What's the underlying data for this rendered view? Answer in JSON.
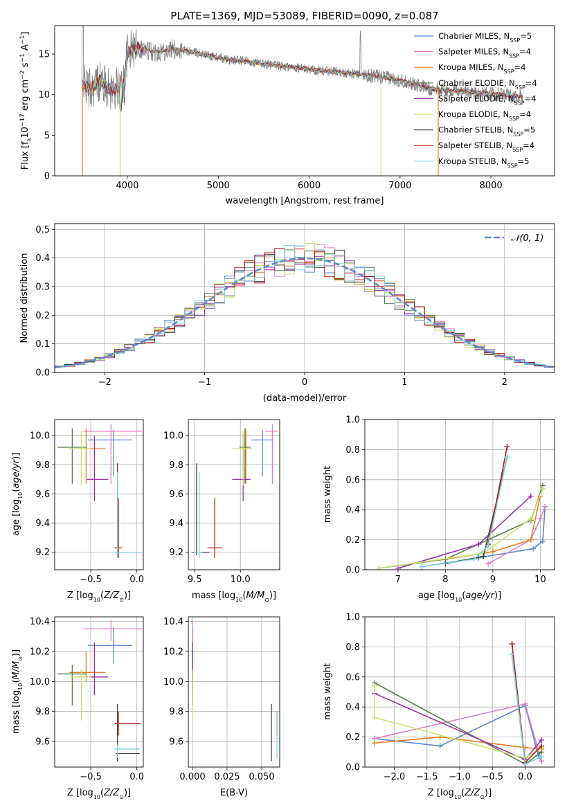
{
  "colors": {
    "gray": "#808080",
    "blue": "#5b86d4",
    "pink": "#e07fc4",
    "orange": "#e87e20",
    "green": "#5a7a4e",
    "purple": "#9b2fae",
    "yellowgreen": "#c9e36a",
    "black": "#444444",
    "red": "#b81d13",
    "cyan": "#7ed6de"
  },
  "legend": [
    {
      "text": "Chabrier MILES, N",
      "sub": "SSP",
      "tail": "=5",
      "color": "#5b86d4"
    },
    {
      "text": "Salpeter MILES, N",
      "sub": "SSP",
      "tail": "=4",
      "color": "#e07fc4"
    },
    {
      "text": "Kroupa MILES, N",
      "sub": "SSP",
      "tail": "=4",
      "color": "#e87e20"
    },
    {
      "text": "Chabrier ELODIE, N",
      "sub": "SSP",
      "tail": "=4",
      "color": "#5a7a4e"
    },
    {
      "text": "Salpeter ELODIE, N",
      "sub": "SSP",
      "tail": "=4",
      "color": "#9b2fae"
    },
    {
      "text": "Kroupa ELODIE, N",
      "sub": "SSP",
      "tail": "=4",
      "color": "#c9e36a"
    },
    {
      "text": "Chabrier STELIB, N",
      "sub": "SSP",
      "tail": "=5",
      "color": "#444444"
    },
    {
      "text": "Salpeter STELIB, N",
      "sub": "SSP",
      "tail": "=4",
      "color": "#b81d13"
    },
    {
      "text": "Kroupa STELIB, N",
      "sub": "SSP",
      "tail": "=5",
      "color": "#7ed6de"
    }
  ],
  "chart_data": [
    {
      "type": "line",
      "title": "PLATE=1369, MJD=53089, FIBERID=0090, z=0.087",
      "xlabel": "wavelength [Angstrom, rest frame]",
      "ylabel": "Flux [fλ10⁻¹⁷ erg cm⁻² s⁻¹ A⁻¹]",
      "xlim": [
        3200,
        8700
      ],
      "ylim": [
        0,
        18.5
      ],
      "xticks": [
        4000,
        5000,
        6000,
        7000,
        8000
      ],
      "yticks": [
        0,
        5,
        10,
        15
      ],
      "series_names": [
        "Chabrier MILES",
        "Salpeter MILES",
        "Kroupa MILES",
        "Chabrier ELODIE",
        "Salpeter ELODIE",
        "Kroupa ELODIE",
        "Chabrier STELIB",
        "Salpeter STELIB",
        "Kroupa STELIB"
      ],
      "continuum": [
        [
          3500,
          11.2
        ],
        [
          3600,
          10.8
        ],
        [
          3700,
          11.8
        ],
        [
          3800,
          10.6
        ],
        [
          3950,
          11.0
        ],
        [
          4000,
          15.2
        ],
        [
          4100,
          15.8
        ],
        [
          4300,
          15.3
        ],
        [
          4500,
          15.6
        ],
        [
          4700,
          15.3
        ],
        [
          4900,
          14.8
        ],
        [
          5100,
          14.3
        ],
        [
          5300,
          14.1
        ],
        [
          5500,
          13.8
        ],
        [
          5700,
          13.5
        ],
        [
          5900,
          13.3
        ],
        [
          6100,
          13.0
        ],
        [
          6300,
          12.8
        ],
        [
          6500,
          12.6
        ],
        [
          6700,
          12.3
        ],
        [
          6900,
          12.0
        ],
        [
          7100,
          11.5
        ],
        [
          7300,
          10.8
        ],
        [
          7500,
          10.5
        ],
        [
          7700,
          10.4
        ],
        [
          7900,
          10.2
        ],
        [
          8100,
          10.0
        ],
        [
          8300,
          9.8
        ]
      ]
    },
    {
      "type": "histogram",
      "xlabel": "(data-model)/error",
      "ylabel": "Normed distribution",
      "xlim": [
        -2.5,
        2.5
      ],
      "ylim": [
        0,
        0.52
      ],
      "xticks": [
        -2,
        -1,
        0,
        1,
        2
      ],
      "yticks": [
        0.0,
        0.1,
        0.2,
        0.3,
        0.4,
        0.5
      ],
      "legend": "𝒩(0, 1)",
      "gaussian": {
        "mu": 0,
        "sigma": 1
      }
    },
    {
      "type": "scatter",
      "xlabel": "Z [log10(Z/Z⊙)]",
      "ylabel": "age  [log10(age/yr)]",
      "xlim": [
        -0.89,
        0.07
      ],
      "ylim": [
        9.08,
        10.11
      ],
      "xticks": [
        -0.5,
        0.0
      ],
      "yticks": [
        9.2,
        9.4,
        9.6,
        9.8,
        10.0
      ],
      "points": [
        {
          "x": -0.25,
          "y": 9.97,
          "xerr": [
            0.28,
            0.2
          ],
          "yerr": [
            0.25,
            0.07
          ],
          "color": "#5b86d4"
        },
        {
          "x": -0.28,
          "y": 10.03,
          "xerr": [
            0.3,
            0.34
          ],
          "yerr": [
            0.36,
            0.05
          ],
          "color": "#e07fc4"
        },
        {
          "x": -0.55,
          "y": 9.91,
          "xerr": [
            0.18,
            0.21
          ],
          "yerr": [
            0.24,
            0.14
          ],
          "color": "#e87e20"
        },
        {
          "x": -0.7,
          "y": 9.92,
          "xerr": [
            0.16,
            0.16
          ],
          "yerr": [
            0.25,
            0.13
          ],
          "color": "#5a7a4e"
        },
        {
          "x": -0.46,
          "y": 9.7,
          "xerr": [
            0.08,
            0.15
          ],
          "yerr": [
            0.15,
            0.3
          ],
          "color": "#9b2fae"
        },
        {
          "x": -0.6,
          "y": 9.91,
          "xerr": [
            0.12,
            0.1
          ],
          "yerr": [
            0.25,
            0.12
          ],
          "color": "#c9e36a"
        },
        {
          "x": -0.21,
          "y": 9.2,
          "xerr": [
            0.02,
            0.02
          ],
          "yerr": [
            0.02,
            0.61
          ],
          "color": "#444444"
        },
        {
          "x": -0.2,
          "y": 9.23,
          "xerr": [
            0.04,
            0.04
          ],
          "yerr": [
            0.07,
            0.34
          ],
          "color": "#b81d13"
        },
        {
          "x": -0.21,
          "y": 9.2,
          "xerr": [
            0.03,
            0.24
          ],
          "yerr": [
            0.04,
            0.55
          ],
          "color": "#7ed6de"
        }
      ]
    },
    {
      "type": "scatter",
      "xlabel": "mass [log10(M/M⊙)]",
      "ylabel": "",
      "xlim": [
        9.43,
        10.43
      ],
      "ylim": [
        9.08,
        10.11
      ],
      "xticks": [
        9.5,
        10.0
      ],
      "yticks": [
        9.2,
        9.4,
        9.6,
        9.8,
        10.0
      ],
      "points": [
        {
          "x": 10.24,
          "y": 9.97,
          "xerr": [
            0.12,
            0.12
          ],
          "yerr": [
            0.25,
            0.07
          ],
          "color": "#5b86d4"
        },
        {
          "x": 10.35,
          "y": 10.03,
          "xerr": [
            0.08,
            0.06
          ],
          "yerr": [
            0.36,
            0.05
          ],
          "color": "#e07fc4"
        },
        {
          "x": 10.06,
          "y": 9.91,
          "xerr": [
            0.06,
            0.06
          ],
          "yerr": [
            0.24,
            0.14
          ],
          "color": "#e87e20"
        },
        {
          "x": 10.05,
          "y": 9.92,
          "xerr": [
            0.06,
            0.06
          ],
          "yerr": [
            0.25,
            0.13
          ],
          "color": "#5a7a4e"
        },
        {
          "x": 10.03,
          "y": 9.7,
          "xerr": [
            0.12,
            0.08
          ],
          "yerr": [
            0.15,
            0.3
          ],
          "color": "#9b2fae"
        },
        {
          "x": 10.03,
          "y": 9.91,
          "xerr": [
            0.12,
            0.08
          ],
          "yerr": [
            0.25,
            0.12
          ],
          "color": "#c9e36a"
        },
        {
          "x": 9.52,
          "y": 9.2,
          "xerr": [
            0.05,
            0.14
          ],
          "yerr": [
            0.02,
            0.61
          ],
          "color": "#444444"
        },
        {
          "x": 9.72,
          "y": 9.23,
          "xerr": [
            0.08,
            0.08
          ],
          "yerr": [
            0.07,
            0.34
          ],
          "color": "#b81d13"
        },
        {
          "x": 9.55,
          "y": 9.2,
          "xerr": [
            0.06,
            0.03
          ],
          "yerr": [
            0.04,
            0.55
          ],
          "color": "#7ed6de"
        }
      ]
    },
    {
      "type": "line",
      "xlabel": "age  [log10(age/yr)]",
      "ylabel": "mass weight",
      "xlim": [
        6.3,
        10.3
      ],
      "ylim": [
        0,
        1.0
      ],
      "xticks": [
        7,
        8,
        9,
        10
      ],
      "yticks": [
        0.0,
        0.2,
        0.4,
        0.6,
        0.8,
        1.0
      ],
      "series": [
        {
          "color": "#5b86d4",
          "points": [
            [
              7.5,
              0.02
            ],
            [
              8.7,
              0.08
            ],
            [
              9.85,
              0.14
            ],
            [
              10.05,
              0.19
            ],
            [
              10.1,
              0.42
            ]
          ]
        },
        {
          "color": "#e07fc4",
          "points": [
            [
              8.9,
              0.04
            ],
            [
              9.8,
              0.2
            ],
            [
              10.0,
              0.34
            ],
            [
              10.1,
              0.42
            ]
          ]
        },
        {
          "color": "#e87e20",
          "points": [
            [
              8.0,
              0.07
            ],
            [
              9.0,
              0.12
            ],
            [
              9.8,
              0.2
            ],
            [
              10.0,
              0.49
            ]
          ]
        },
        {
          "color": "#5a7a4e",
          "points": [
            [
              6.6,
              0.01
            ],
            [
              8.0,
              0.07
            ],
            [
              9.8,
              0.33
            ],
            [
              10.05,
              0.56
            ]
          ]
        },
        {
          "color": "#9b2fae",
          "points": [
            [
              7.0,
              0.01
            ],
            [
              8.7,
              0.17
            ],
            [
              9.8,
              0.49
            ]
          ]
        },
        {
          "color": "#c9e36a",
          "points": [
            [
              6.6,
              0.01
            ],
            [
              8.8,
              0.11
            ],
            [
              9.8,
              0.34
            ],
            [
              10.05,
              0.54
            ]
          ]
        },
        {
          "color": "#444444",
          "points": [
            [
              8.0,
              0.04
            ],
            [
              8.8,
              0.09
            ],
            [
              9.3,
              0.75
            ]
          ]
        },
        {
          "color": "#b81d13",
          "points": [
            [
              8.9,
              0.17
            ],
            [
              9.3,
              0.82
            ]
          ]
        },
        {
          "color": "#7ed6de",
          "points": [
            [
              7.5,
              0.02
            ],
            [
              8.6,
              0.07
            ],
            [
              8.9,
              0.16
            ],
            [
              9.3,
              0.75
            ]
          ]
        }
      ]
    },
    {
      "type": "scatter",
      "xlabel": "Z [log10(Z/Z⊙)]",
      "ylabel": "mass [log10(M/M⊙)]",
      "xlim": [
        -0.89,
        0.07
      ],
      "ylim": [
        9.43,
        10.43
      ],
      "xticks": [
        -0.5,
        0.0
      ],
      "yticks": [
        9.6,
        9.8,
        10.0,
        10.2,
        10.4
      ],
      "points": [
        {
          "x": -0.25,
          "y": 10.24,
          "xerr": [
            0.28,
            0.2
          ],
          "yerr": [
            0.12,
            0.12
          ],
          "color": "#5b86d4"
        },
        {
          "x": -0.28,
          "y": 10.35,
          "xerr": [
            0.3,
            0.34
          ],
          "yerr": [
            0.08,
            0.06
          ],
          "color": "#e07fc4"
        },
        {
          "x": -0.55,
          "y": 10.06,
          "xerr": [
            0.18,
            0.21
          ],
          "yerr": [
            0.06,
            0.14
          ],
          "color": "#e87e20"
        },
        {
          "x": -0.7,
          "y": 10.05,
          "xerr": [
            0.16,
            0.16
          ],
          "yerr": [
            0.21,
            0.06
          ],
          "color": "#5a7a4e"
        },
        {
          "x": -0.46,
          "y": 10.03,
          "xerr": [
            0.08,
            0.15
          ],
          "yerr": [
            0.12,
            0.23
          ],
          "color": "#9b2fae"
        },
        {
          "x": -0.6,
          "y": 10.03,
          "xerr": [
            0.12,
            0.1
          ],
          "yerr": [
            0.29,
            0.05
          ],
          "color": "#c9e36a"
        },
        {
          "x": -0.21,
          "y": 9.52,
          "xerr": [
            0.02,
            0.24
          ],
          "yerr": [
            0.05,
            0.33
          ],
          "color": "#444444"
        },
        {
          "x": -0.2,
          "y": 9.72,
          "xerr": [
            0.04,
            0.24
          ],
          "yerr": [
            0.08,
            0.08
          ],
          "color": "#b81d13"
        },
        {
          "x": -0.21,
          "y": 9.55,
          "xerr": [
            0.03,
            0.24
          ],
          "yerr": [
            0.06,
            0.03
          ],
          "color": "#7ed6de"
        }
      ]
    },
    {
      "type": "scatter",
      "xlabel": "E(B-V)",
      "ylabel": "",
      "xlim": [
        -0.003,
        0.063
      ],
      "ylim": [
        9.43,
        10.43
      ],
      "xticks": [
        0.0,
        0.025,
        0.05
      ],
      "xticklabels": [
        "0.000",
        "0.025",
        "0.050"
      ],
      "yticks": [
        9.6,
        9.8,
        10.0,
        10.2,
        10.4
      ],
      "points": [
        {
          "x": 0.0,
          "y": 10.24,
          "yerr": [
            0.12,
            0.12
          ],
          "color": "#5b86d4"
        },
        {
          "x": 0.0,
          "y": 10.35,
          "yerr": [
            0.08,
            0.06
          ],
          "color": "#e07fc4"
        },
        {
          "x": 0.0,
          "y": 10.06,
          "yerr": [
            0.06,
            0.14
          ],
          "color": "#e87e20"
        },
        {
          "x": 0.0,
          "y": 10.05,
          "yerr": [
            0.21,
            0.06
          ],
          "color": "#5a7a4e"
        },
        {
          "x": 0.0,
          "y": 10.03,
          "yerr": [
            0.12,
            0.23
          ],
          "color": "#9b2fae"
        },
        {
          "x": 0.0,
          "y": 10.03,
          "yerr": [
            0.29,
            0.05
          ],
          "color": "#c9e36a"
        },
        {
          "x": 0.057,
          "y": 9.52,
          "yerr": [
            0.05,
            0.33
          ],
          "color": "#444444"
        },
        {
          "x": 0.061,
          "y": 9.72,
          "yerr": [
            0.08,
            0.08
          ],
          "color": "#b81d13"
        },
        {
          "x": 0.061,
          "y": 9.55,
          "yerr": [
            0.06,
            0.25
          ],
          "color": "#7ed6de"
        }
      ]
    },
    {
      "type": "line",
      "xlabel": "Z [log10(Z/Z⊙)]",
      "ylabel": "mass weight",
      "xlim": [
        -2.45,
        0.45
      ],
      "ylim": [
        0,
        1.0
      ],
      "xticks": [
        -2.0,
        -1.5,
        -1.0,
        -0.5,
        0.0
      ],
      "xticklabels": [
        "−2.0",
        "−1.5",
        "−1.0",
        "−0.5",
        "0.0"
      ],
      "yticks": [
        0.0,
        0.2,
        0.4,
        0.6,
        0.8,
        1.0
      ],
      "series": [
        {
          "color": "#5b86d4",
          "points": [
            [
              -2.3,
              0.19
            ],
            [
              -1.3,
              0.14
            ],
            [
              0.0,
              0.41
            ],
            [
              0.2,
              0.08
            ],
            [
              0.25,
              0.04
            ]
          ]
        },
        {
          "color": "#e07fc4",
          "points": [
            [
              -2.3,
              0.19
            ],
            [
              0.0,
              0.42
            ],
            [
              0.25,
              0.04
            ]
          ]
        },
        {
          "color": "#e87e20",
          "points": [
            [
              -2.3,
              0.16
            ],
            [
              -1.3,
              0.2
            ],
            [
              0.0,
              0.13
            ],
            [
              0.25,
              0.12
            ]
          ]
        },
        {
          "color": "#5a7a4e",
          "points": [
            [
              -2.3,
              0.56
            ],
            [
              0.0,
              0.02
            ],
            [
              0.25,
              0.1
            ]
          ]
        },
        {
          "color": "#9b2fae",
          "points": [
            [
              -2.3,
              0.49
            ],
            [
              0.0,
              0.05
            ],
            [
              0.25,
              0.18
            ]
          ]
        },
        {
          "color": "#c9e36a",
          "points": [
            [
              -2.3,
              0.54
            ],
            [
              -2.3,
              0.33
            ],
            [
              0.0,
              0.06
            ],
            [
              0.25,
              0.13
            ]
          ]
        },
        {
          "color": "#444444",
          "points": [
            [
              -0.2,
              0.75
            ],
            [
              0.0,
              0.02
            ]
          ]
        },
        {
          "color": "#b81d13",
          "points": [
            [
              -0.2,
              0.82
            ],
            [
              0.0,
              0.03
            ],
            [
              0.25,
              0.14
            ]
          ]
        },
        {
          "color": "#7ed6de",
          "points": [
            [
              -0.2,
              0.75
            ],
            [
              0.0,
              0.02
            ],
            [
              0.25,
              0.07
            ]
          ]
        }
      ]
    }
  ]
}
